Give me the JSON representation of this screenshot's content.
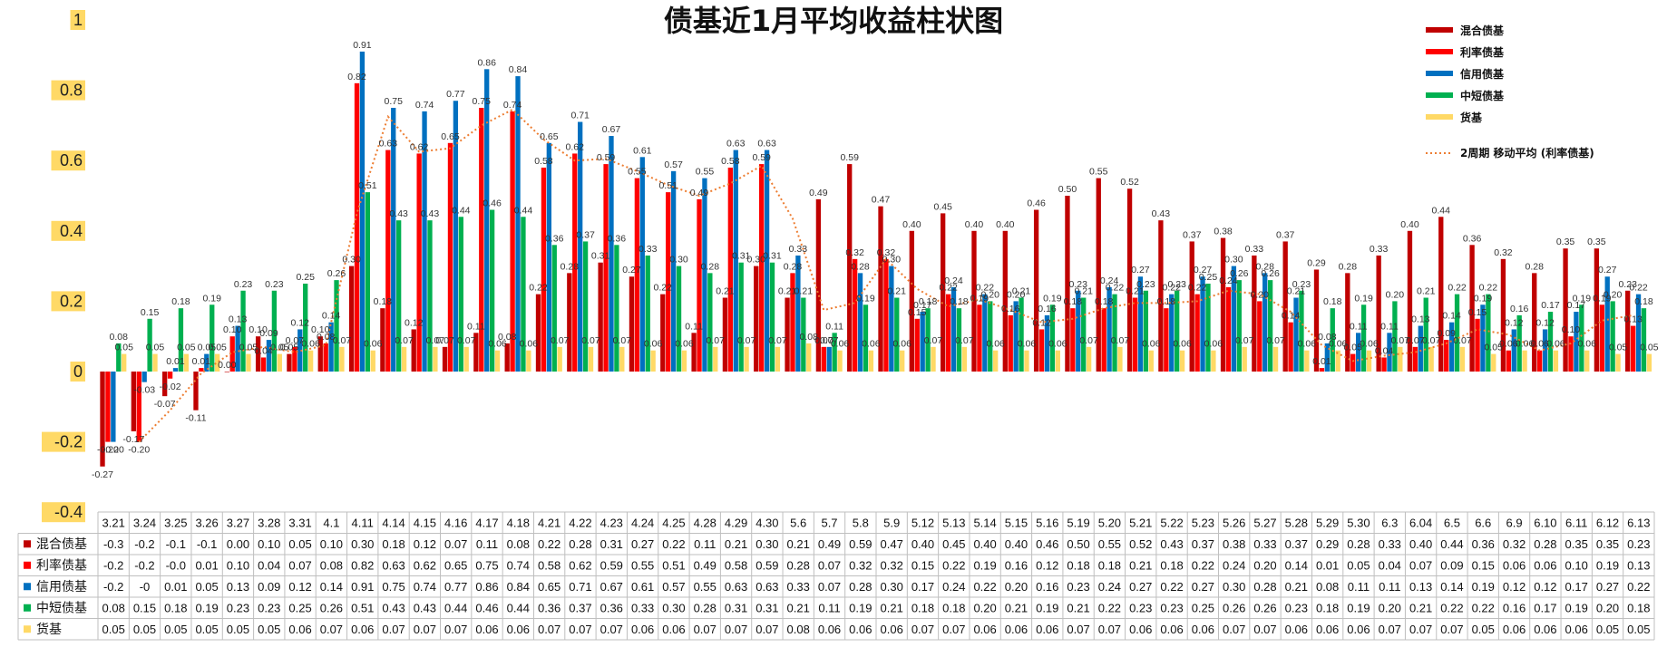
{
  "chart_data": {
    "type": "bar",
    "title": "债基近1月平均收益柱状图",
    "ylim": [
      -0.4,
      1
    ],
    "yticks": [
      "1",
      "0.8",
      "0.6",
      "0.4",
      "0.2",
      "0",
      "-0.2",
      "-0.4"
    ],
    "ytick_values": [
      1,
      0.8,
      0.6,
      0.4,
      0.2,
      0,
      -0.2,
      -0.4
    ],
    "grid": false,
    "legend_position": "top-right",
    "categories": [
      "3.21",
      "3.24",
      "3.25",
      "3.26",
      "3.27",
      "3.28",
      "3.31",
      "4.1",
      "4.11",
      "4.14",
      "4.15",
      "4.16",
      "4.17",
      "4.18",
      "4.21",
      "4.22",
      "4.23",
      "4.24",
      "4.25",
      "4.28",
      "4.29",
      "4.30",
      "5.6",
      "5.7",
      "5.8",
      "5.9",
      "5.12",
      "5.13",
      "5.14",
      "5.15",
      "5.16",
      "5.19",
      "5.20",
      "5.21",
      "5.22",
      "5.23",
      "5.26",
      "5.27",
      "5.28",
      "5.29",
      "5.30",
      "6.3",
      "6.04",
      "6.5",
      "6.6",
      "6.9",
      "6.10",
      "6.11",
      "6.12",
      "6.13"
    ],
    "series": [
      {
        "name": "混合债基",
        "color": "#C00000",
        "values": [
          -0.27,
          -0.17,
          -0.07,
          -0.11,
          0.0,
          0.1,
          0.05,
          0.1,
          0.3,
          0.18,
          0.12,
          0.07,
          0.11,
          0.08,
          0.22,
          0.28,
          0.31,
          0.27,
          0.22,
          0.11,
          0.21,
          0.3,
          0.21,
          0.49,
          0.59,
          0.47,
          0.4,
          0.45,
          0.4,
          0.4,
          0.46,
          0.5,
          0.55,
          0.52,
          0.43,
          0.37,
          0.38,
          0.33,
          0.37,
          0.29,
          0.28,
          0.33,
          0.4,
          0.44,
          0.36,
          0.32,
          0.28,
          0.35,
          0.35,
          0.23
        ],
        "labels": [
          "-0.27",
          "-0.17",
          "-0.07",
          "-0.11",
          "0.00",
          "0.10",
          "0.05",
          "0.10",
          "0.30",
          "0.18",
          "0.12",
          "0.07",
          "0.11",
          "0.08",
          "0.22",
          "0.28",
          "0.31",
          "0.27",
          "0.22",
          "0.11",
          "0.21",
          "0.30",
          "0.21",
          "0.49",
          "0.59",
          "0.47",
          "0.40",
          "0.45",
          "0.40",
          "0.40",
          "0.46",
          "0.50",
          "0.55",
          "0.52",
          "0.43",
          "0.37",
          "0.38",
          "0.33",
          "0.37",
          "0.29",
          "0.28",
          "0.33",
          "0.40",
          "0.44",
          "0.36",
          "0.32",
          "0.28",
          "0.35",
          "0.35",
          "0.23"
        ],
        "table": [
          "-0.3",
          "-0.2",
          "-0.1",
          "-0.1",
          "0.00",
          "0.10",
          "0.05",
          "0.10",
          "0.30",
          "0.18",
          "0.12",
          "0.07",
          "0.11",
          "0.08",
          "0.22",
          "0.28",
          "0.31",
          "0.27",
          "0.22",
          "0.11",
          "0.21",
          "0.30",
          "0.21",
          "0.49",
          "0.59",
          "0.47",
          "0.40",
          "0.45",
          "0.40",
          "0.40",
          "0.46",
          "0.50",
          "0.55",
          "0.52",
          "0.43",
          "0.37",
          "0.38",
          "0.33",
          "0.37",
          "0.29",
          "0.28",
          "0.33",
          "0.40",
          "0.44",
          "0.36",
          "0.32",
          "0.28",
          "0.35",
          "0.35",
          "0.23"
        ]
      },
      {
        "name": "利率债基",
        "color": "#FF0000",
        "values": [
          -0.2,
          -0.2,
          -0.02,
          0.01,
          0.1,
          0.04,
          0.07,
          0.08,
          0.82,
          0.63,
          0.62,
          0.65,
          0.75,
          0.74,
          0.58,
          0.62,
          0.59,
          0.55,
          0.51,
          0.49,
          0.58,
          0.59,
          0.28,
          0.07,
          0.32,
          0.32,
          0.15,
          0.22,
          0.19,
          0.16,
          0.12,
          0.18,
          0.18,
          0.21,
          0.18,
          0.22,
          0.24,
          0.2,
          0.14,
          0.01,
          0.05,
          0.04,
          0.07,
          0.09,
          0.15,
          0.06,
          0.06,
          0.1,
          0.19,
          0.13
        ],
        "labels": [
          "-0.20",
          "-0.20",
          "-0.02",
          "0.01",
          "0.10",
          "0.04",
          "0.07",
          "0.08",
          "0.82",
          "0.63",
          "0.62",
          "0.65",
          "0.75",
          "0.74",
          "0.58",
          "0.62",
          "0.59",
          "0.55",
          "0.51",
          "0.49",
          "0.58",
          "0.59",
          "0.28",
          "0.07",
          "0.32",
          "0.32",
          "0.15",
          "0.22",
          "0.19",
          "0.16",
          "0.12",
          "0.18",
          "0.18",
          "0.21",
          "0.18",
          "0.22",
          "0.24",
          "0.20",
          "0.14",
          "0.01",
          "0.05",
          "0.04",
          "0.07",
          "0.09",
          "0.15",
          "0.06",
          "0.06",
          "0.10",
          "0.19",
          "0.13"
        ],
        "table": [
          "-0.2",
          "-0.2",
          "-0.0",
          "0.01",
          "0.10",
          "0.04",
          "0.07",
          "0.08",
          "0.82",
          "0.63",
          "0.62",
          "0.65",
          "0.75",
          "0.74",
          "0.58",
          "0.62",
          "0.59",
          "0.55",
          "0.51",
          "0.49",
          "0.58",
          "0.59",
          "0.28",
          "0.07",
          "0.32",
          "0.32",
          "0.15",
          "0.22",
          "0.19",
          "0.16",
          "0.12",
          "0.18",
          "0.18",
          "0.21",
          "0.18",
          "0.22",
          "0.24",
          "0.20",
          "0.14",
          "0.01",
          "0.05",
          "0.04",
          "0.07",
          "0.09",
          "0.15",
          "0.06",
          "0.06",
          "0.10",
          "0.19",
          "0.13"
        ]
      },
      {
        "name": "信用债基",
        "color": "#0070C0",
        "values": [
          -0.2,
          -0.03,
          0.01,
          0.05,
          0.13,
          0.09,
          0.12,
          0.14,
          0.91,
          0.75,
          0.74,
          0.77,
          0.86,
          0.84,
          0.65,
          0.71,
          0.67,
          0.61,
          0.57,
          0.55,
          0.63,
          0.63,
          0.33,
          0.07,
          0.28,
          0.3,
          0.17,
          0.24,
          0.22,
          0.2,
          0.16,
          0.23,
          0.24,
          0.27,
          0.22,
          0.27,
          0.3,
          0.28,
          0.21,
          0.08,
          0.11,
          0.11,
          0.13,
          0.14,
          0.19,
          0.12,
          0.12,
          0.17,
          0.27,
          0.22
        ],
        "labels": [
          "-0.20",
          "-0.03",
          "0.01",
          "0.05",
          "0.13",
          "0.09",
          "0.12",
          "0.14",
          "0.91",
          "0.75",
          "0.74",
          "0.77",
          "0.86",
          "0.84",
          "0.65",
          "0.71",
          "0.67",
          "0.61",
          "0.57",
          "0.55",
          "0.63",
          "0.63",
          "0.33",
          "0.07",
          "0.28",
          "0.30",
          "0.17",
          "0.24",
          "0.22",
          "0.20",
          "0.16",
          "0.23",
          "0.24",
          "0.27",
          "0.22",
          "0.27",
          "0.30",
          "0.28",
          "0.21",
          "0.08",
          "0.11",
          "0.11",
          "0.13",
          "0.14",
          "0.19",
          "0.12",
          "0.12",
          "0.17",
          "0.27",
          "0.22"
        ],
        "table": [
          "-0.2",
          "-0",
          "0.01",
          "0.05",
          "0.13",
          "0.09",
          "0.12",
          "0.14",
          "0.91",
          "0.75",
          "0.74",
          "0.77",
          "0.86",
          "0.84",
          "0.65",
          "0.71",
          "0.67",
          "0.61",
          "0.57",
          "0.55",
          "0.63",
          "0.63",
          "0.33",
          "0.07",
          "0.28",
          "0.30",
          "0.17",
          "0.24",
          "0.22",
          "0.20",
          "0.16",
          "0.23",
          "0.24",
          "0.27",
          "0.22",
          "0.27",
          "0.30",
          "0.28",
          "0.21",
          "0.08",
          "0.11",
          "0.11",
          "0.13",
          "0.14",
          "0.19",
          "0.12",
          "0.12",
          "0.17",
          "0.27",
          "0.22"
        ]
      },
      {
        "name": "中短债基",
        "color": "#00B050",
        "values": [
          0.08,
          0.15,
          0.18,
          0.19,
          0.23,
          0.23,
          0.25,
          0.26,
          0.51,
          0.43,
          0.43,
          0.44,
          0.46,
          0.44,
          0.36,
          0.37,
          0.36,
          0.33,
          0.3,
          0.28,
          0.31,
          0.31,
          0.21,
          0.11,
          0.19,
          0.21,
          0.18,
          0.18,
          0.2,
          0.21,
          0.19,
          0.21,
          0.22,
          0.23,
          0.23,
          0.25,
          0.26,
          0.26,
          0.23,
          0.18,
          0.19,
          0.2,
          0.21,
          0.22,
          0.22,
          0.16,
          0.17,
          0.19,
          0.2,
          0.18
        ],
        "labels": [
          "0.08",
          "0.15",
          "0.18",
          "0.19",
          "0.23",
          "0.23",
          "0.25",
          "0.26",
          "0.51",
          "0.43",
          "0.43",
          "0.44",
          "0.46",
          "0.44",
          "0.36",
          "0.37",
          "0.36",
          "0.33",
          "0.30",
          "0.28",
          "0.31",
          "0.31",
          "0.21",
          "0.11",
          "0.19",
          "0.21",
          "0.18",
          "0.18",
          "0.20",
          "0.21",
          "0.19",
          "0.21",
          "0.22",
          "0.23",
          "0.23",
          "0.25",
          "0.26",
          "0.26",
          "0.23",
          "0.18",
          "0.19",
          "0.20",
          "0.21",
          "0.22",
          "0.22",
          "0.16",
          "0.17",
          "0.19",
          "0.20",
          "0.18"
        ],
        "table": [
          "0.08",
          "0.15",
          "0.18",
          "0.19",
          "0.23",
          "0.23",
          "0.25",
          "0.26",
          "0.51",
          "0.43",
          "0.43",
          "0.44",
          "0.46",
          "0.44",
          "0.36",
          "0.37",
          "0.36",
          "0.33",
          "0.30",
          "0.28",
          "0.31",
          "0.31",
          "0.21",
          "0.11",
          "0.19",
          "0.21",
          "0.18",
          "0.18",
          "0.20",
          "0.21",
          "0.19",
          "0.21",
          "0.22",
          "0.23",
          "0.23",
          "0.25",
          "0.26",
          "0.26",
          "0.23",
          "0.18",
          "0.19",
          "0.20",
          "0.21",
          "0.22",
          "0.22",
          "0.16",
          "0.17",
          "0.19",
          "0.20",
          "0.18"
        ]
      },
      {
        "name": "货基",
        "color": "#FFD966",
        "values": [
          0.05,
          0.05,
          0.05,
          0.05,
          0.05,
          0.05,
          0.06,
          0.07,
          0.06,
          0.07,
          0.07,
          0.07,
          0.06,
          0.06,
          0.07,
          0.07,
          0.07,
          0.06,
          0.06,
          0.07,
          0.07,
          0.07,
          0.08,
          0.06,
          0.06,
          0.06,
          0.07,
          0.07,
          0.06,
          0.06,
          0.06,
          0.07,
          0.07,
          0.06,
          0.06,
          0.06,
          0.07,
          0.07,
          0.06,
          0.06,
          0.06,
          0.07,
          0.07,
          0.07,
          0.05,
          0.06,
          0.06,
          0.06,
          0.05,
          0.05
        ],
        "labels": [
          "0.05",
          "0.05",
          "0.05",
          "0.05",
          "0.05",
          "0.05",
          "0.06",
          "0.07",
          "0.06",
          "0.07",
          "0.07",
          "0.07",
          "0.06",
          "0.06",
          "0.07",
          "0.07",
          "0.07",
          "0.06",
          "0.06",
          "0.07",
          "0.07",
          "0.07",
          "0.08",
          "0.06",
          "0.06",
          "0.06",
          "0.07",
          "0.07",
          "0.06",
          "0.06",
          "0.06",
          "0.07",
          "0.07",
          "0.06",
          "0.06",
          "0.06",
          "0.07",
          "0.07",
          "0.06",
          "0.06",
          "0.06",
          "0.07",
          "0.07",
          "0.07",
          "0.05",
          "0.06",
          "0.06",
          "0.06",
          "0.05",
          "0.05"
        ],
        "table": [
          "0.05",
          "0.05",
          "0.05",
          "0.05",
          "0.05",
          "0.05",
          "0.06",
          "0.07",
          "0.06",
          "0.07",
          "0.07",
          "0.07",
          "0.06",
          "0.06",
          "0.07",
          "0.07",
          "0.07",
          "0.06",
          "0.06",
          "0.07",
          "0.07",
          "0.07",
          "0.08",
          "0.06",
          "0.06",
          "0.06",
          "0.07",
          "0.07",
          "0.06",
          "0.06",
          "0.06",
          "0.07",
          "0.07",
          "0.06",
          "0.06",
          "0.06",
          "0.07",
          "0.07",
          "0.06",
          "0.06",
          "0.06",
          "0.07",
          "0.07",
          "0.07",
          "0.05",
          "0.06",
          "0.06",
          "0.06",
          "0.05",
          "0.05"
        ]
      }
    ],
    "trendline": {
      "name": "2周期 移动平均 (利率债基)",
      "color": "#ED7D31",
      "period": 2,
      "of_series": 1
    }
  }
}
